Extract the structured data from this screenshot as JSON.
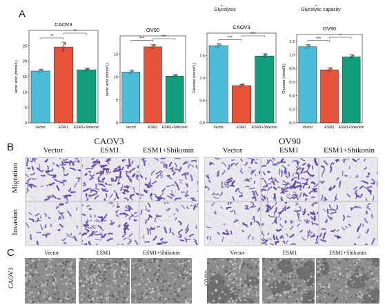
{
  "panels": {
    "A": "A",
    "B": "B",
    "C": "C"
  },
  "top_notes": {
    "glycolysis": "Glycolysis",
    "glycolytic_capacity": "Glycolytic capacity"
  },
  "colors": {
    "vector": "#4dbcd8",
    "esm1": "#e8523a",
    "shikonin": "#129e7c",
    "crystal_violet": "#5a3c9e"
  },
  "chart_data": [
    {
      "type": "bar",
      "title": "CAOV3",
      "ylabel": "lactic acid (mmol/L)",
      "categories": [
        "Vector",
        "ESM1",
        "ESM1+Shikonin"
      ],
      "values": [
        16.8,
        24.6,
        17.2
      ],
      "errors": [
        0.6,
        1.6,
        0.5
      ],
      "yticks": [
        0,
        5,
        10,
        15,
        20,
        25
      ],
      "ylim": [
        0,
        30
      ],
      "significance": [
        {
          "from": 0,
          "to": 1,
          "label": "**"
        },
        {
          "from": 1,
          "to": 2,
          "label": "**"
        }
      ]
    },
    {
      "type": "bar",
      "title": "OV90",
      "ylabel": "lactic acid (mmol/L)",
      "categories": [
        "Vector",
        "ESM1",
        "ESM1+Shikonin"
      ],
      "values": [
        11.1,
        16.6,
        10.2
      ],
      "errors": [
        0.4,
        0.5,
        0.3
      ],
      "yticks": [
        0,
        5,
        10,
        15
      ],
      "ylim": [
        0,
        19
      ],
      "significance": [
        {
          "from": 0,
          "to": 1,
          "label": "***"
        },
        {
          "from": 1,
          "to": 2,
          "label": "***"
        }
      ]
    },
    {
      "type": "bar",
      "title": "CAOV3",
      "ylabel": "Glucose (mmol/L)",
      "categories": [
        "Vector",
        "ESM1",
        "ESM1+Shikonin"
      ],
      "values": [
        1.72,
        0.83,
        1.49
      ],
      "errors": [
        0.04,
        0.03,
        0.05
      ],
      "yticks": [
        0.0,
        0.5,
        1.0,
        1.5
      ],
      "ylim": [
        0,
        2.0
      ],
      "significance": [
        {
          "from": 0,
          "to": 1,
          "label": "***"
        },
        {
          "from": 1,
          "to": 2,
          "label": "***"
        }
      ]
    },
    {
      "type": "bar",
      "title": "OV90",
      "ylabel": "Glucose (mmol/L)",
      "categories": [
        "Vector",
        "ESM1",
        "ESM1+Shikonin"
      ],
      "values": [
        1.12,
        0.78,
        0.97
      ],
      "errors": [
        0.03,
        0.03,
        0.03
      ],
      "yticks": [
        0.0,
        0.2,
        0.4,
        0.6,
        0.8,
        1.0,
        1.2
      ],
      "ylim": [
        0,
        1.3
      ],
      "significance": [
        {
          "from": 0,
          "to": 1,
          "label": "***"
        },
        {
          "from": 1,
          "to": 2,
          "label": "*"
        }
      ]
    }
  ],
  "panel_b": {
    "groups": [
      {
        "name": "CAOV3",
        "columns": [
          "Vector",
          "ESM1",
          "ESM1+Shikonin"
        ]
      },
      {
        "name": "OV90",
        "columns": [
          "Vector",
          "ESM1",
          "ESM1+Shikonin"
        ]
      }
    ],
    "rows": [
      "Migration",
      "Invasion"
    ]
  },
  "panel_c": {
    "groups": [
      {
        "name": "CAOV3",
        "columns": [
          "Vector",
          "ESM1",
          "ESM1+Shikonin"
        ]
      },
      {
        "name": "OV90",
        "columns": [
          "Vector",
          "ESM1",
          "ESM1+Shikonin"
        ]
      }
    ]
  }
}
